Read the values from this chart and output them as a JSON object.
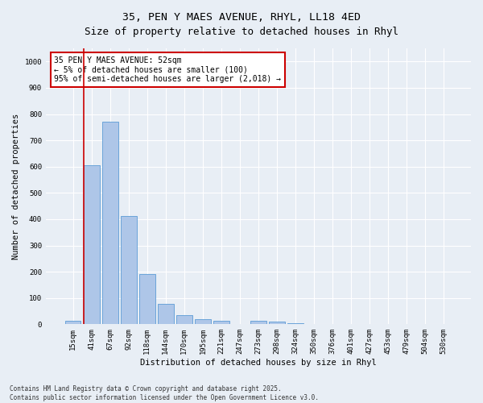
{
  "title_line1": "35, PEN Y MAES AVENUE, RHYL, LL18 4ED",
  "title_line2": "Size of property relative to detached houses in Rhyl",
  "xlabel": "Distribution of detached houses by size in Rhyl",
  "ylabel": "Number of detached properties",
  "categories": [
    "15sqm",
    "41sqm",
    "67sqm",
    "92sqm",
    "118sqm",
    "144sqm",
    "170sqm",
    "195sqm",
    "221sqm",
    "247sqm",
    "273sqm",
    "298sqm",
    "324sqm",
    "350sqm",
    "376sqm",
    "401sqm",
    "427sqm",
    "453sqm",
    "479sqm",
    "504sqm",
    "530sqm"
  ],
  "values": [
    12,
    605,
    770,
    413,
    190,
    78,
    36,
    20,
    13,
    0,
    12,
    11,
    5,
    0,
    0,
    0,
    0,
    0,
    0,
    0,
    0
  ],
  "bar_color": "#aec6e8",
  "bar_edge_color": "#5b9bd5",
  "vline_color": "#cc0000",
  "vline_xindex": 1,
  "annotation_text": "35 PEN Y MAES AVENUE: 52sqm\n← 5% of detached houses are smaller (100)\n95% of semi-detached houses are larger (2,018) →",
  "annotation_box_edge": "#cc0000",
  "annotation_box_face": "#ffffff",
  "ylim": [
    0,
    1050
  ],
  "yticks": [
    0,
    100,
    200,
    300,
    400,
    500,
    600,
    700,
    800,
    900,
    1000
  ],
  "background_color": "#e8eef5",
  "grid_color": "#ffffff",
  "footer_line1": "Contains HM Land Registry data © Crown copyright and database right 2025.",
  "footer_line2": "Contains public sector information licensed under the Open Government Licence v3.0.",
  "title_fontsize": 9.5,
  "axis_label_fontsize": 7.5,
  "tick_fontsize": 6.5,
  "annotation_fontsize": 7,
  "ylabel_fontsize": 7.5
}
